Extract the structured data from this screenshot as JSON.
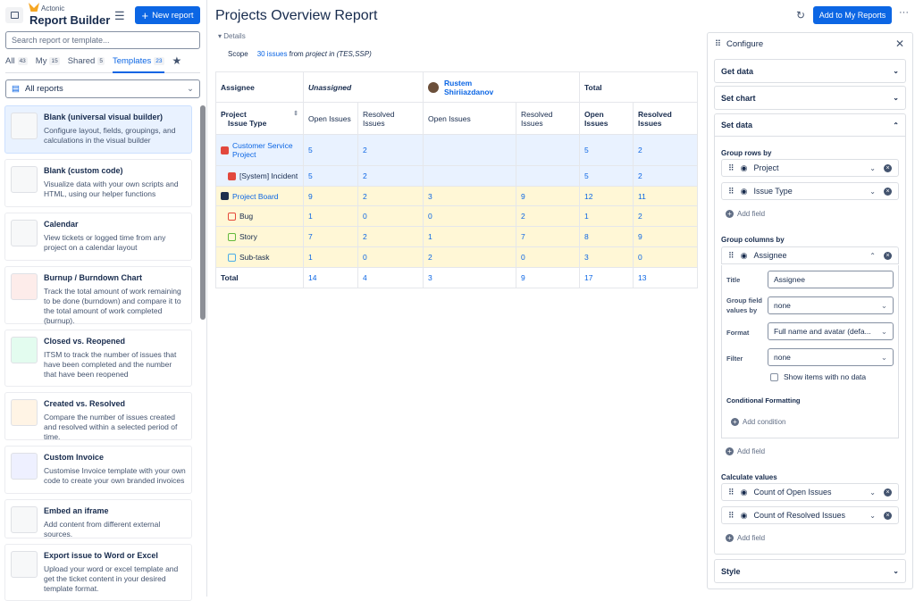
{
  "sidebar": {
    "brand_small": "Actonic",
    "brand": "Report Builder",
    "new_report": "New report",
    "search_placeholder": "Search report or template...",
    "tabs": [
      {
        "label": "All",
        "count": "43"
      },
      {
        "label": "My",
        "count": "15"
      },
      {
        "label": "Shared",
        "count": "5"
      },
      {
        "label": "Templates",
        "count": "23"
      }
    ],
    "filter": "All reports",
    "templates": [
      {
        "title": "Blank (universal visual builder)",
        "desc": "Configure layout, fields, groupings, and calculations in the visual builder"
      },
      {
        "title": "Blank (custom code)",
        "desc": "Visualize data with your own scripts and HTML, using our helper functions"
      },
      {
        "title": "Calendar",
        "desc": "View tickets or logged time from any project on a calendar layout"
      },
      {
        "title": "Burnup / Burndown Chart",
        "desc": "Track the total amount of work remaining to be done (burndown) and compare it to the total amount of work completed (burnup)."
      },
      {
        "title": "Closed vs. Reopened",
        "desc": "ITSM to track the number of issues that have been completed and the number that have been reopened"
      },
      {
        "title": "Created vs. Resolved",
        "desc": "Compare the number of issues created and resolved within a selected period of time."
      },
      {
        "title": "Custom Invoice",
        "desc": "Customise Invoice template with your own code to create your own branded invoices"
      },
      {
        "title": "Embed an iframe",
        "desc": "Add content from different external sources."
      },
      {
        "title": "Export issue to Word or Excel",
        "desc": "Upload your word or excel template and get the ticket content in your desired template format."
      }
    ]
  },
  "main": {
    "title": "Projects Overview Report",
    "details": "Details",
    "scope_label": "Scope",
    "scope_link": "30 issues",
    "scope_from": "from",
    "scope_query": "project in (TES,SSP)",
    "refresh_icon": "refresh-icon",
    "add_button": "Add to My Reports",
    "more": "···",
    "table": {
      "assignee": "Assignee",
      "unassigned": "Unassigned",
      "user": "Rustem Shiriiazdanov",
      "total": "Total",
      "row_header_1": "Project",
      "row_header_2": "Issue Type",
      "cols": [
        "Open Issues",
        "Resolved Issues",
        "Open Issues",
        "Resolved Issues",
        "Open Issues",
        "Resolved Issues"
      ],
      "rows": [
        {
          "label": "Customer Service Project",
          "kind": "cs-project",
          "values": [
            "5",
            "2",
            "",
            "",
            "5",
            "2"
          ]
        },
        {
          "label": "[System] Incident",
          "kind": "cs-type",
          "values": [
            "5",
            "2",
            "",
            "",
            "5",
            "2"
          ]
        },
        {
          "label": "Project Board",
          "kind": "pb-project",
          "values": [
            "9",
            "2",
            "3",
            "9",
            "12",
            "11"
          ]
        },
        {
          "label": "Bug",
          "kind": "pb-type",
          "values": [
            "1",
            "0",
            "0",
            "2",
            "1",
            "2"
          ]
        },
        {
          "label": "Story",
          "kind": "pb-type",
          "values": [
            "7",
            "2",
            "1",
            "7",
            "8",
            "9"
          ]
        },
        {
          "label": "Sub-task",
          "kind": "pb-type",
          "values": [
            "1",
            "0",
            "2",
            "0",
            "3",
            "0"
          ]
        }
      ],
      "total_row": {
        "label": "Total",
        "values": [
          "14",
          "4",
          "3",
          "9",
          "17",
          "13"
        ]
      }
    }
  },
  "config": {
    "title": "Configure",
    "sections": {
      "get_data": "Get data",
      "set_chart": "Set chart",
      "set_data": "Set data",
      "style": "Style"
    },
    "group_rows_label": "Group rows by",
    "group_rows": [
      "Project",
      "Issue Type"
    ],
    "add_field": "Add field",
    "group_cols_label": "Group columns by",
    "group_col": "Assignee",
    "form": {
      "title_label": "Title",
      "title_value": "Assignee",
      "group_label": "Group field values by",
      "group_value": "none",
      "format_label": "Format",
      "format_value": "Full name and avatar (defa...",
      "filter_label": "Filter",
      "filter_value": "none",
      "show_empty": "Show items with no data",
      "show_empty_checked": false,
      "cond_label": "Conditional Formatting",
      "add_condition": "Add condition"
    },
    "calc_label": "Calculate values",
    "calc": [
      "Count of Open Issues",
      "Count of Resolved Issues"
    ]
  },
  "colors": {
    "accent": "#0c66e4",
    "cs_row": "#e9f2ff",
    "pb_row": "#fff7d6"
  }
}
